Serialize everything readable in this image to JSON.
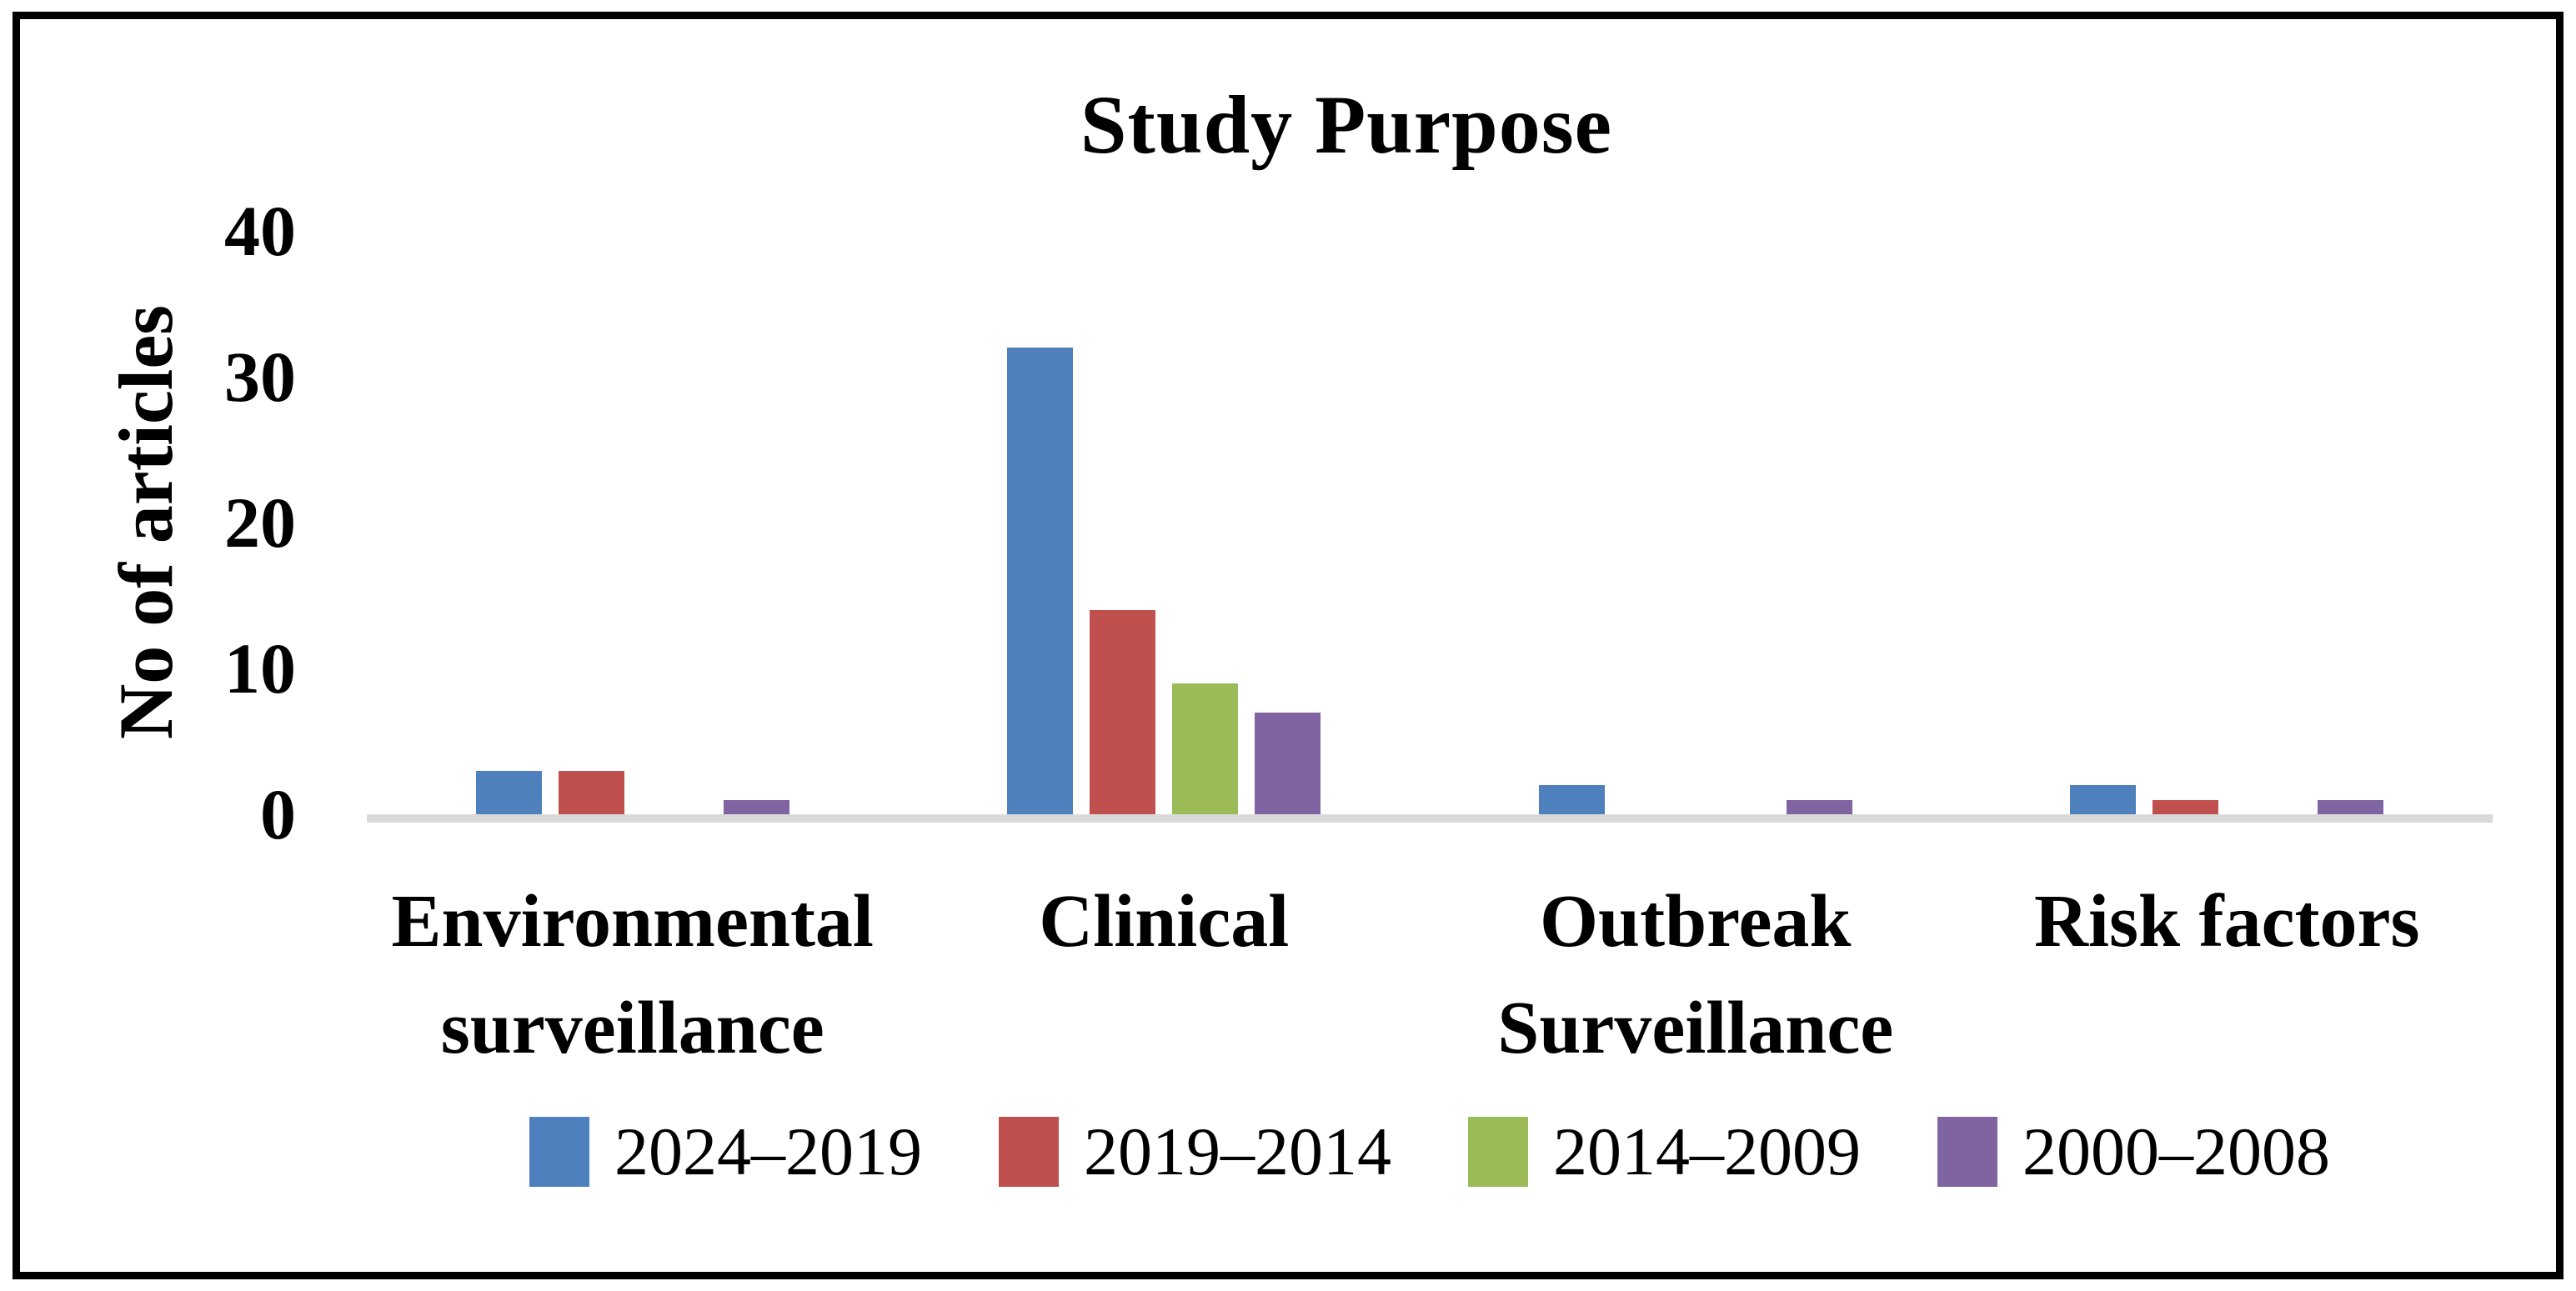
{
  "chart_data": {
    "type": "bar",
    "title": "Study Purpose",
    "ylabel": "No of articles",
    "xlabel": "",
    "ylim": [
      0,
      40
    ],
    "yticks": [
      0,
      10,
      20,
      30,
      40
    ],
    "grid": false,
    "legend_position": "bottom",
    "categories": [
      "Environmental surveillance",
      "Clinical",
      "Outbreak Surveillance",
      "Risk factors"
    ],
    "series": [
      {
        "name": "2024–2019",
        "color": "#4E80BD",
        "values": [
          3,
          32,
          2,
          2
        ]
      },
      {
        "name": "2019–2014",
        "color": "#C0504D",
        "values": [
          3,
          14,
          0,
          1
        ]
      },
      {
        "name": "2014–2009",
        "color": "#9BBB59",
        "values": [
          0,
          9,
          0,
          0
        ]
      },
      {
        "name": "2000–2008",
        "color": "#8064A2",
        "values": [
          1,
          7,
          1,
          1
        ]
      }
    ],
    "axis_line_color": "#D9D9D9",
    "text_color": "#000000",
    "frame_color": "#000000"
  }
}
